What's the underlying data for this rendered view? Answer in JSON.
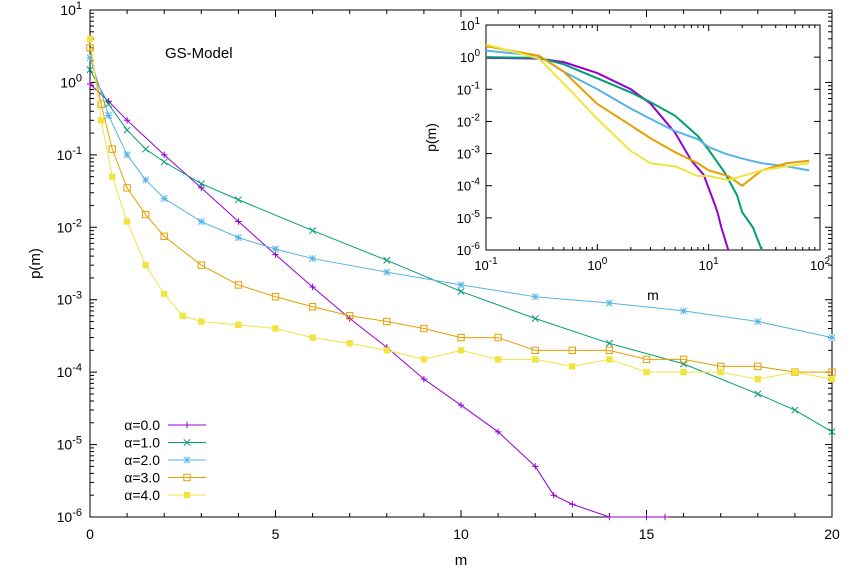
{
  "chart_data": [
    {
      "type": "line",
      "title": "",
      "annotation": "GS-Model",
      "xlabel": "m",
      "ylabel": "p(m)",
      "xscale": "linear",
      "yscale": "log",
      "xlim": [
        0,
        20
      ],
      "ylim": [
        1e-06,
        10
      ],
      "x_ticks": [
        "0",
        "5",
        "10",
        "15",
        "20"
      ],
      "y_ticks": [
        {
          "base": "10",
          "exp": "1"
        },
        {
          "base": "10",
          "exp": "0"
        },
        {
          "base": "10",
          "exp": "-1"
        },
        {
          "base": "10",
          "exp": "-2"
        },
        {
          "base": "10",
          "exp": "-3"
        },
        {
          "base": "10",
          "exp": "-4"
        },
        {
          "base": "10",
          "exp": "-5"
        },
        {
          "base": "10",
          "exp": "-6"
        }
      ],
      "legend_position": "bottom-left",
      "series": [
        {
          "name": "α=0.0",
          "color": "#9400d3",
          "marker": "plus",
          "x": [
            0,
            0.5,
            1,
            2,
            3,
            4,
            5,
            6,
            7,
            8,
            9,
            10,
            11,
            12,
            12.5,
            13,
            14,
            15,
            15.5
          ],
          "y": [
            0.95,
            0.55,
            0.3,
            0.1,
            0.035,
            0.012,
            0.0042,
            0.0015,
            0.00055,
            0.00022,
            8e-05,
            3.5e-05,
            1.5e-05,
            5e-06,
            2e-06,
            1.5e-06,
            1e-06,
            1e-06,
            1e-06
          ]
        },
        {
          "name": "α=1.0",
          "color": "#009e73",
          "marker": "cross",
          "x": [
            0,
            0.5,
            1,
            1.5,
            2,
            3,
            4,
            6,
            8,
            10,
            12,
            14,
            16,
            18,
            19,
            20
          ],
          "y": [
            1.5,
            0.5,
            0.22,
            0.12,
            0.08,
            0.04,
            0.024,
            0.009,
            0.0035,
            0.0013,
            0.00055,
            0.00025,
            0.00013,
            5e-05,
            3e-05,
            1.5e-05
          ]
        },
        {
          "name": "α=2.0",
          "color": "#56b4e9",
          "marker": "star",
          "x": [
            0,
            0.5,
            1,
            1.5,
            2,
            3,
            4,
            5,
            6,
            8,
            10,
            12,
            14,
            16,
            18,
            20
          ],
          "y": [
            2.2,
            0.35,
            0.1,
            0.045,
            0.025,
            0.012,
            0.0072,
            0.005,
            0.0037,
            0.0024,
            0.0016,
            0.0011,
            0.0009,
            0.0007,
            0.0005,
            0.0003
          ]
        },
        {
          "name": "α=3.0",
          "color": "#e69f00",
          "marker": "box",
          "x": [
            0,
            0.3,
            0.6,
            1,
            1.5,
            2,
            3,
            4,
            5,
            6,
            7,
            8,
            9,
            10,
            11,
            12,
            13,
            14,
            15,
            16,
            17,
            18,
            19,
            20
          ],
          "y": [
            3.0,
            0.5,
            0.12,
            0.035,
            0.015,
            0.0075,
            0.003,
            0.0016,
            0.0011,
            0.0008,
            0.0006,
            0.0005,
            0.0004,
            0.0003,
            0.0003,
            0.0002,
            0.0002,
            0.0002,
            0.00015,
            0.00015,
            0.00012,
            0.00012,
            0.0001,
            0.0001
          ]
        },
        {
          "name": "α=4.0",
          "color": "#f0e442",
          "marker": "filled-box",
          "x": [
            0,
            0.3,
            0.6,
            1,
            1.5,
            2,
            2.5,
            3,
            4,
            5,
            6,
            7,
            8,
            9,
            10,
            11,
            12,
            13,
            14,
            15,
            16,
            17,
            18,
            19,
            20
          ],
          "y": [
            4.0,
            0.3,
            0.05,
            0.012,
            0.003,
            0.0012,
            0.0006,
            0.0005,
            0.00045,
            0.0004,
            0.0003,
            0.00025,
            0.0002,
            0.00015,
            0.0002,
            0.00015,
            0.00015,
            0.00012,
            0.00015,
            0.0001,
            0.0001,
            0.0001,
            8e-05,
            0.0001,
            8e-05
          ]
        }
      ]
    },
    {
      "type": "line",
      "title": "",
      "xlabel": "m",
      "ylabel": "p(m)",
      "xscale": "log",
      "yscale": "log",
      "xlim": [
        0.1,
        100
      ],
      "ylim": [
        1e-06,
        10
      ],
      "x_ticks": [
        {
          "base": "10",
          "exp": "-1"
        },
        {
          "base": "10",
          "exp": "0"
        },
        {
          "base": "10",
          "exp": "1"
        },
        {
          "base": "10",
          "exp": "2"
        }
      ],
      "y_ticks": [
        {
          "base": "10",
          "exp": "1"
        },
        {
          "base": "10",
          "exp": "0"
        },
        {
          "base": "10",
          "exp": "-1"
        },
        {
          "base": "10",
          "exp": "-2"
        },
        {
          "base": "10",
          "exp": "-3"
        },
        {
          "base": "10",
          "exp": "-4"
        },
        {
          "base": "10",
          "exp": "-5"
        },
        {
          "base": "10",
          "exp": "-6"
        }
      ],
      "series": [
        {
          "color": "#9400d3",
          "x": [
            0.1,
            0.3,
            0.5,
            1,
            2,
            3,
            5,
            7,
            9,
            11,
            12,
            13,
            15
          ],
          "y": [
            0.95,
            0.9,
            0.7,
            0.32,
            0.1,
            0.036,
            0.0044,
            0.0006,
            0.00022,
            3.5e-05,
            1.5e-05,
            5e-06,
            1e-06
          ]
        },
        {
          "color": "#009e73",
          "x": [
            0.1,
            0.3,
            0.5,
            1,
            2,
            3,
            5,
            8,
            10,
            14,
            18,
            20,
            25,
            30
          ],
          "y": [
            1.0,
            0.95,
            0.6,
            0.22,
            0.08,
            0.04,
            0.015,
            0.0035,
            0.0013,
            0.00025,
            5e-05,
            1.5e-05,
            5e-06,
            1e-06
          ]
        },
        {
          "color": "#56b4e9",
          "x": [
            0.1,
            0.3,
            0.5,
            1,
            2,
            3,
            5,
            8,
            10,
            14,
            20,
            30,
            50,
            80
          ],
          "y": [
            1.6,
            1.1,
            0.35,
            0.1,
            0.025,
            0.012,
            0.005,
            0.0028,
            0.0016,
            0.001,
            0.0007,
            0.0005,
            0.0004,
            0.0003
          ]
        },
        {
          "color": "#e69f00",
          "x": [
            0.1,
            0.3,
            0.5,
            1,
            2,
            3,
            5,
            8,
            10,
            15,
            20,
            30,
            50,
            80
          ],
          "y": [
            2.2,
            1.1,
            0.35,
            0.035,
            0.0075,
            0.003,
            0.0011,
            0.0005,
            0.0003,
            0.0002,
            0.0001,
            0.0003,
            0.0005,
            0.0006
          ]
        },
        {
          "color": "#f0e442",
          "x": [
            0.1,
            0.3,
            0.5,
            1,
            2,
            3,
            5,
            8,
            10,
            15,
            20,
            30,
            50,
            80
          ],
          "y": [
            2.5,
            0.9,
            0.15,
            0.012,
            0.0012,
            0.0005,
            0.0004,
            0.0002,
            0.0002,
            0.00015,
            0.0002,
            0.0003,
            0.0004,
            0.0005
          ]
        }
      ]
    }
  ]
}
